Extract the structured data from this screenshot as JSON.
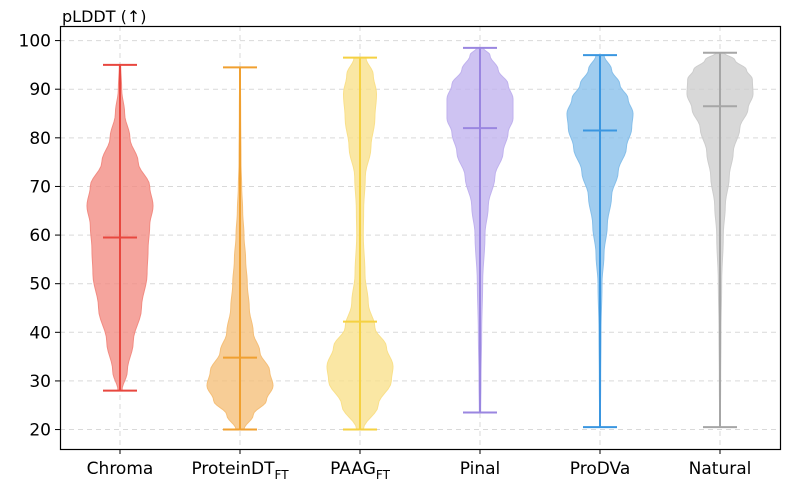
{
  "chart_data": {
    "type": "violin",
    "ylabel": "pLDDT (↑)",
    "ylim": [
      16,
      103
    ],
    "yticks": [
      20,
      30,
      40,
      50,
      60,
      70,
      80,
      90,
      100
    ],
    "grid": true,
    "categories": [
      {
        "name": "Chroma",
        "sub": ""
      },
      {
        "name": "ProteinDT",
        "sub": "FT"
      },
      {
        "name": "PAAG",
        "sub": "FT"
      },
      {
        "name": "Pinal",
        "sub": ""
      },
      {
        "name": "ProDVa",
        "sub": ""
      },
      {
        "name": "Natural",
        "sub": ""
      }
    ],
    "series": [
      {
        "color": "#e8473f",
        "fill": "#f28b82",
        "min": 28,
        "median": 59.5,
        "max": 95,
        "profile": [
          [
            28,
            0.06
          ],
          [
            32,
            0.22
          ],
          [
            38,
            0.4
          ],
          [
            45,
            0.65
          ],
          [
            52,
            0.82
          ],
          [
            57,
            0.85
          ],
          [
            62,
            0.9
          ],
          [
            66,
            1.0
          ],
          [
            70,
            0.9
          ],
          [
            75,
            0.55
          ],
          [
            80,
            0.3
          ],
          [
            85,
            0.14
          ],
          [
            90,
            0.05
          ],
          [
            95,
            0.02
          ]
        ]
      },
      {
        "color": "#f0a030",
        "fill": "#f5bf78",
        "min": 20,
        "median": 34.8,
        "max": 94.5,
        "profile": [
          [
            20,
            0.12
          ],
          [
            23,
            0.4
          ],
          [
            26,
            0.8
          ],
          [
            29,
            1.0
          ],
          [
            32,
            0.9
          ],
          [
            36,
            0.6
          ],
          [
            40,
            0.4
          ],
          [
            45,
            0.28
          ],
          [
            50,
            0.22
          ],
          [
            55,
            0.17
          ],
          [
            60,
            0.12
          ],
          [
            65,
            0.08
          ],
          [
            70,
            0.05
          ],
          [
            75,
            0.03
          ],
          [
            85,
            0.02
          ],
          [
            94.5,
            0.01
          ]
        ]
      },
      {
        "color": "#f5d142",
        "fill": "#f9e08a",
        "min": 20,
        "median": 42.2,
        "max": 96.5,
        "profile": [
          [
            20,
            0.1
          ],
          [
            25,
            0.55
          ],
          [
            30,
            0.95
          ],
          [
            33,
            1.0
          ],
          [
            37,
            0.8
          ],
          [
            41,
            0.45
          ],
          [
            46,
            0.25
          ],
          [
            52,
            0.15
          ],
          [
            60,
            0.1
          ],
          [
            65,
            0.11
          ],
          [
            72,
            0.16
          ],
          [
            78,
            0.33
          ],
          [
            84,
            0.45
          ],
          [
            89,
            0.5
          ],
          [
            93,
            0.4
          ],
          [
            96.5,
            0.18
          ]
        ]
      },
      {
        "color": "#9a86e0",
        "fill": "#c0b2ee",
        "min": 23.5,
        "median": 82,
        "max": 98.5,
        "profile": [
          [
            23.5,
            0.02
          ],
          [
            30,
            0.03
          ],
          [
            40,
            0.05
          ],
          [
            50,
            0.08
          ],
          [
            60,
            0.15
          ],
          [
            66,
            0.25
          ],
          [
            72,
            0.45
          ],
          [
            77,
            0.7
          ],
          [
            81,
            0.85
          ],
          [
            84,
            1.0
          ],
          [
            88,
            1.0
          ],
          [
            91,
            0.85
          ],
          [
            94,
            0.55
          ],
          [
            97,
            0.3
          ],
          [
            98.5,
            0.1
          ]
        ]
      },
      {
        "color": "#3a96e0",
        "fill": "#86bfea",
        "min": 20.5,
        "median": 81.5,
        "max": 97,
        "profile": [
          [
            20.5,
            0.01
          ],
          [
            30,
            0.02
          ],
          [
            40,
            0.03
          ],
          [
            50,
            0.06
          ],
          [
            56,
            0.12
          ],
          [
            62,
            0.22
          ],
          [
            68,
            0.35
          ],
          [
            73,
            0.55
          ],
          [
            78,
            0.8
          ],
          [
            82,
            0.96
          ],
          [
            85,
            1.0
          ],
          [
            88,
            0.85
          ],
          [
            91,
            0.6
          ],
          [
            94,
            0.35
          ],
          [
            97,
            0.12
          ]
        ]
      },
      {
        "color": "#a6a6a6",
        "fill": "#cdcdcd",
        "min": 20.5,
        "median": 86.5,
        "max": 97.5,
        "profile": [
          [
            20.5,
            0.01
          ],
          [
            30,
            0.02
          ],
          [
            40,
            0.03
          ],
          [
            50,
            0.05
          ],
          [
            60,
            0.1
          ],
          [
            66,
            0.16
          ],
          [
            72,
            0.28
          ],
          [
            77,
            0.4
          ],
          [
            82,
            0.6
          ],
          [
            86,
            0.85
          ],
          [
            89,
            1.0
          ],
          [
            92,
            0.98
          ],
          [
            94,
            0.8
          ],
          [
            96,
            0.45
          ],
          [
            97.5,
            0.12
          ]
        ]
      }
    ]
  }
}
